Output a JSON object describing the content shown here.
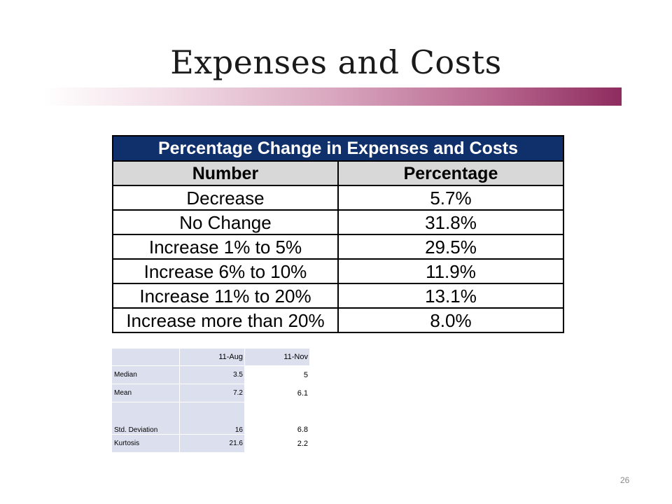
{
  "slide": {
    "title": "Expenses and Costs",
    "page_number": "26",
    "accent_color": "#8e2c5f"
  },
  "main_table": {
    "title": "Percentage Change in Expenses and Costs",
    "title_bg": "#10306b",
    "headers": [
      "Number",
      "Percentage"
    ],
    "rows": [
      [
        "Decrease",
        "5.7%"
      ],
      [
        "No Change",
        "31.8%"
      ],
      [
        "Increase 1% to 5%",
        "29.5%"
      ],
      [
        "Increase 6% to 10%",
        "11.9%"
      ],
      [
        "Increase 11% to 20%",
        "13.1%"
      ],
      [
        "Increase more than 20%",
        "8.0%"
      ]
    ]
  },
  "stats_table": {
    "headers": [
      "",
      "11-Aug",
      "11-Nov"
    ],
    "rows": [
      [
        "Median",
        "3.5",
        "5"
      ],
      [
        "Mean",
        "7.2",
        "6.1"
      ],
      [
        "Std. Deviation",
        "16",
        "6.8"
      ],
      [
        "Kurtosis",
        "21.6",
        "2.2"
      ]
    ]
  }
}
